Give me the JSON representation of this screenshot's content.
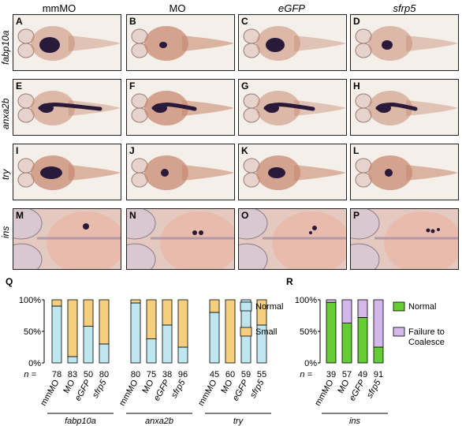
{
  "columns": [
    "mmMO",
    "MO",
    "eGFP",
    "sfrp5"
  ],
  "rows": [
    {
      "gene": "fabp10a",
      "letters": [
        "A",
        "B",
        "C",
        "D"
      ]
    },
    {
      "gene": "anxa2b",
      "letters": [
        "E",
        "F",
        "G",
        "H"
      ]
    },
    {
      "gene": "try",
      "letters": [
        "I",
        "J",
        "K",
        "L"
      ]
    },
    {
      "gene": "ins",
      "letters": [
        "M",
        "N",
        "O",
        "P"
      ]
    }
  ],
  "colors": {
    "normal": "#bfe6f0",
    "small": "#f5cf7e",
    "normal_ins": "#66cc33",
    "failure": "#d3b8e9",
    "embryo": "#c88a72",
    "stain": "#2a1a3a"
  },
  "figure_letters": {
    "q": "Q",
    "r": "R"
  },
  "chart_data": [
    {
      "type": "bar",
      "panel": "Q",
      "stacked": true,
      "ylim": [
        0,
        100
      ],
      "yticks": [
        "0%",
        "50%",
        "100%"
      ],
      "n_label": "n =",
      "groups": [
        {
          "gene": "fabp10a",
          "categories": [
            "mmMO",
            "MO",
            "eGFP",
            "sfrp5"
          ],
          "n": [
            78,
            83,
            50,
            80
          ]
        },
        {
          "gene": "anxa2b",
          "categories": [
            "mmMO",
            "MO",
            "eGFP",
            "sfrp5"
          ],
          "n": [
            80,
            75,
            38,
            96
          ]
        },
        {
          "gene": "try",
          "categories": [
            "mmMO",
            "MO",
            "eGFP",
            "sfrp5"
          ],
          "n": [
            45,
            60,
            59,
            55
          ]
        }
      ],
      "series": [
        {
          "name": "Normal",
          "values": [
            90,
            10,
            58,
            30,
            95,
            38,
            60,
            25,
            80,
            0,
            100,
            60
          ]
        },
        {
          "name": "Small",
          "values": [
            10,
            90,
            42,
            70,
            5,
            62,
            40,
            75,
            20,
            100,
            0,
            40
          ]
        }
      ],
      "legend": "right"
    },
    {
      "type": "bar",
      "panel": "R",
      "stacked": true,
      "ylim": [
        0,
        100
      ],
      "yticks": [
        "0%",
        "50%",
        "100%"
      ],
      "n_label": "n =",
      "groups": [
        {
          "gene": "ins",
          "categories": [
            "mmMO",
            "MO",
            "eGFP",
            "sfrp5"
          ],
          "n": [
            39,
            57,
            49,
            91
          ]
        }
      ],
      "series": [
        {
          "name": "Normal",
          "values": [
            96,
            63,
            72,
            25
          ]
        },
        {
          "name": "Failure to Coalesce",
          "values": [
            4,
            37,
            28,
            75
          ]
        }
      ],
      "legend": "right"
    }
  ]
}
